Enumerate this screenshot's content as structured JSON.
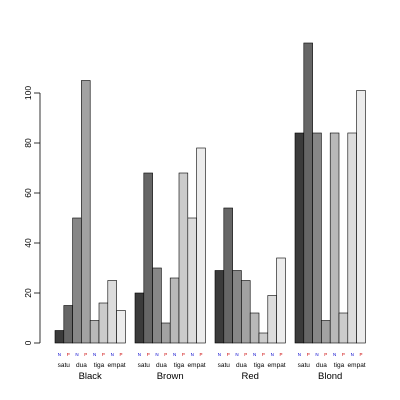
{
  "chart_data": {
    "type": "bar",
    "title": "",
    "xlabel": "",
    "ylabel": "",
    "ylim": [
      0,
      120
    ],
    "y_ticks": [
      0,
      20,
      40,
      60,
      80,
      100
    ],
    "y_tick_labels": [
      "0",
      "20",
      "40",
      "60",
      "80",
      "100"
    ],
    "grid": false,
    "legend": "none",
    "bar_order": [
      "satu N",
      "satu P",
      "dua N",
      "dua P",
      "tiga N",
      "tiga P",
      "empat N",
      "empat P"
    ],
    "bar_fill_colors": [
      "#3b3b3b",
      "#666666",
      "#878787",
      "#a2a2a2",
      "#b8b8b8",
      "#cbcbcb",
      "#dcdcdc",
      "#ececec"
    ],
    "np_label_colors": {
      "N": "#0000cc",
      "P": "#cc0000"
    },
    "sub_labels": [
      "satu",
      "dua",
      "tiga",
      "empat"
    ],
    "groups": [
      {
        "name": "Black",
        "bars": [
          {
            "sub": "satu",
            "np": "N",
            "value": 5
          },
          {
            "sub": "satu",
            "np": "P",
            "value": 15
          },
          {
            "sub": "dua",
            "np": "N",
            "value": 50
          },
          {
            "sub": "dua",
            "np": "P",
            "value": 105
          },
          {
            "sub": "tiga",
            "np": "N",
            "value": 9
          },
          {
            "sub": "tiga",
            "np": "P",
            "value": 16
          },
          {
            "sub": "empat",
            "np": "N",
            "value": 25
          },
          {
            "sub": "empat",
            "np": "P",
            "value": 13
          }
        ]
      },
      {
        "name": "Brown",
        "bars": [
          {
            "sub": "satu",
            "np": "N",
            "value": 20
          },
          {
            "sub": "satu",
            "np": "P",
            "value": 68
          },
          {
            "sub": "dua",
            "np": "N",
            "value": 30
          },
          {
            "sub": "dua",
            "np": "P",
            "value": 8
          },
          {
            "sub": "tiga",
            "np": "N",
            "value": 26
          },
          {
            "sub": "tiga",
            "np": "P",
            "value": 68
          },
          {
            "sub": "empat",
            "np": "N",
            "value": 50
          },
          {
            "sub": "empat",
            "np": "P",
            "value": 78
          }
        ]
      },
      {
        "name": "Red",
        "bars": [
          {
            "sub": "satu",
            "np": "N",
            "value": 29
          },
          {
            "sub": "satu",
            "np": "P",
            "value": 54
          },
          {
            "sub": "dua",
            "np": "N",
            "value": 29
          },
          {
            "sub": "dua",
            "np": "P",
            "value": 25
          },
          {
            "sub": "tiga",
            "np": "N",
            "value": 12
          },
          {
            "sub": "tiga",
            "np": "P",
            "value": 4
          },
          {
            "sub": "empat",
            "np": "N",
            "value": 19
          },
          {
            "sub": "empat",
            "np": "P",
            "value": 34
          }
        ]
      },
      {
        "name": "Blond",
        "bars": [
          {
            "sub": "satu",
            "np": "N",
            "value": 84
          },
          {
            "sub": "satu",
            "np": "P",
            "value": 120
          },
          {
            "sub": "dua",
            "np": "N",
            "value": 84
          },
          {
            "sub": "dua",
            "np": "P",
            "value": 9
          },
          {
            "sub": "tiga",
            "np": "N",
            "value": 84
          },
          {
            "sub": "tiga",
            "np": "P",
            "value": 12
          },
          {
            "sub": "empat",
            "np": "N",
            "value": 84
          },
          {
            "sub": "empat",
            "np": "P",
            "value": 101
          }
        ]
      }
    ]
  }
}
